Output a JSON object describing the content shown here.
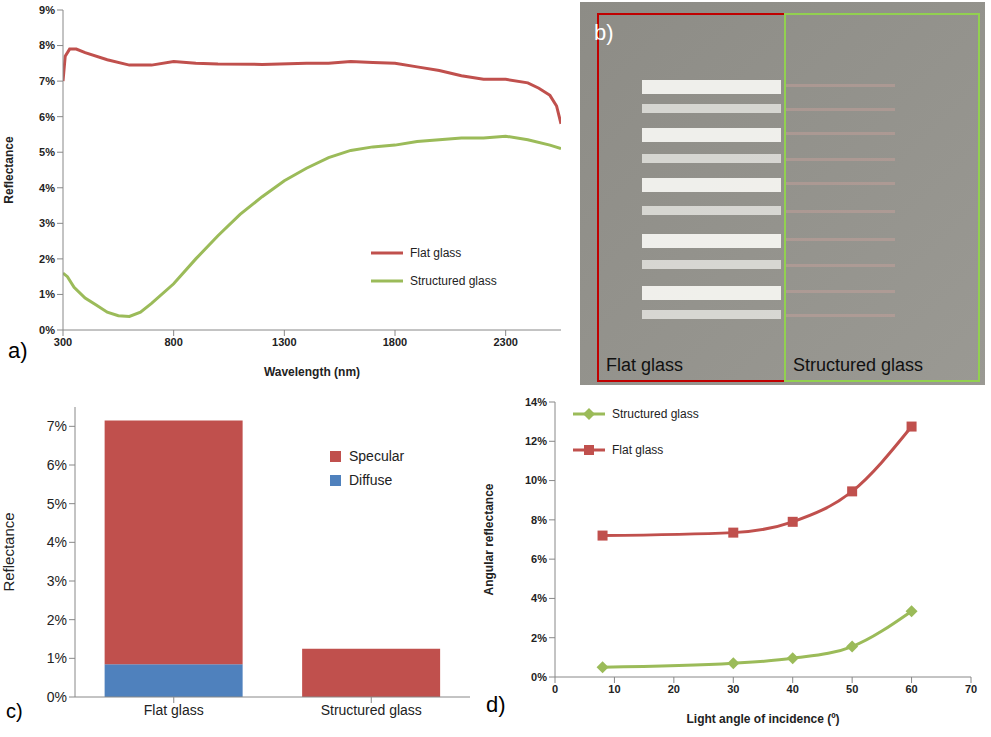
{
  "chart_data": [
    {
      "type": "line",
      "annotations": [
        "a)"
      ],
      "x_label": "Wavelength (nm)",
      "y_label": "Reflectance",
      "grid": false,
      "legend": "lower right",
      "xlim": [
        300,
        2550
      ],
      "xticks": [
        300,
        800,
        1300,
        1800,
        2300
      ],
      "ylim": [
        0,
        9
      ],
      "yticks": [
        {
          "value": 0,
          "label": "0%"
        },
        {
          "value": 1,
          "label": "1%"
        },
        {
          "value": 2,
          "label": "2%"
        },
        {
          "value": 3,
          "label": "3%"
        },
        {
          "value": 4,
          "label": "4%"
        },
        {
          "value": 5,
          "label": "5%"
        },
        {
          "value": 6,
          "label": "6%"
        },
        {
          "value": 7,
          "label": "7%"
        },
        {
          "value": 8,
          "label": "8%"
        },
        {
          "value": 9,
          "label": "9%"
        }
      ],
      "series": [
        {
          "name": "Flat glass",
          "color": "#c0504d",
          "x": [
            300,
            310,
            330,
            360,
            400,
            500,
            600,
            700,
            800,
            900,
            1000,
            1200,
            1400,
            1500,
            1600,
            1700,
            1800,
            1900,
            2000,
            2100,
            2200,
            2300,
            2400,
            2450,
            2500,
            2530,
            2550
          ],
          "values": [
            7.0,
            7.7,
            7.9,
            7.9,
            7.8,
            7.6,
            7.45,
            7.45,
            7.55,
            7.5,
            7.48,
            7.47,
            7.5,
            7.5,
            7.55,
            7.52,
            7.5,
            7.4,
            7.3,
            7.15,
            7.05,
            7.05,
            6.95,
            6.8,
            6.6,
            6.3,
            5.8
          ]
        },
        {
          "name": "Structured glass",
          "color": "#9bbb59",
          "x": [
            300,
            320,
            350,
            400,
            450,
            500,
            550,
            600,
            650,
            700,
            800,
            900,
            1000,
            1100,
            1200,
            1300,
            1400,
            1500,
            1600,
            1700,
            1800,
            1900,
            2000,
            2100,
            2200,
            2300,
            2400,
            2500,
            2550
          ],
          "values": [
            1.6,
            1.5,
            1.2,
            0.9,
            0.7,
            0.5,
            0.4,
            0.38,
            0.5,
            0.75,
            1.3,
            2.0,
            2.65,
            3.25,
            3.75,
            4.2,
            4.55,
            4.85,
            5.05,
            5.15,
            5.2,
            5.3,
            5.35,
            5.4,
            5.4,
            5.45,
            5.35,
            5.2,
            5.1
          ]
        }
      ]
    },
    {
      "type": "bar",
      "annotations": [
        "c)"
      ],
      "y_label": "Reflectance",
      "stacked": true,
      "grid": false,
      "legend": "upper right",
      "categories": [
        "Flat glass",
        "Structured glass"
      ],
      "ylim": [
        0,
        7.5
      ],
      "yticks": [
        {
          "value": 0,
          "label": "0%"
        },
        {
          "value": 1,
          "label": "1%"
        },
        {
          "value": 2,
          "label": "2%"
        },
        {
          "value": 3,
          "label": "3%"
        },
        {
          "value": 4,
          "label": "4%"
        },
        {
          "value": 5,
          "label": "5%"
        },
        {
          "value": 6,
          "label": "6%"
        },
        {
          "value": 7,
          "label": "7%"
        }
      ],
      "series": [
        {
          "name": "Diffuse",
          "color": "#4f81bd",
          "values": [
            0.85,
            0
          ]
        },
        {
          "name": "Specular",
          "color": "#c0504d",
          "values": [
            6.3,
            1.25
          ]
        }
      ]
    },
    {
      "type": "line",
      "annotations": [
        "d)"
      ],
      "x_label": "Light angle of incidence (º)",
      "y_label": "Angular reflectance",
      "grid": false,
      "legend": "upper left",
      "xlim": [
        0,
        70
      ],
      "xticks": [
        0,
        10,
        20,
        30,
        40,
        50,
        60,
        70
      ],
      "ylim": [
        0,
        14
      ],
      "yticks": [
        {
          "value": 0,
          "label": "0%"
        },
        {
          "value": 2,
          "label": "2%"
        },
        {
          "value": 4,
          "label": "4%"
        },
        {
          "value": 6,
          "label": "6%"
        },
        {
          "value": 8,
          "label": "8%"
        },
        {
          "value": 10,
          "label": "10%"
        },
        {
          "value": 12,
          "label": "12%"
        },
        {
          "value": 14,
          "label": "14%"
        }
      ],
      "series": [
        {
          "name": "Structured glass",
          "color": "#9bbb59",
          "marker": "diamond",
          "x": [
            8,
            30,
            40,
            50,
            60
          ],
          "values": [
            0.5,
            0.7,
            0.95,
            1.55,
            3.35
          ]
        },
        {
          "name": "Flat glass",
          "color": "#c0504d",
          "marker": "square",
          "x": [
            8,
            30,
            40,
            50,
            60
          ],
          "values": [
            7.2,
            7.35,
            7.9,
            9.45,
            12.75
          ]
        }
      ]
    }
  ],
  "photo": {
    "annotations": [
      "b)"
    ],
    "regions": [
      {
        "name": "Flat glass",
        "color": "#c00000"
      },
      {
        "name": "Structured glass",
        "color": "#92d050"
      }
    ]
  }
}
